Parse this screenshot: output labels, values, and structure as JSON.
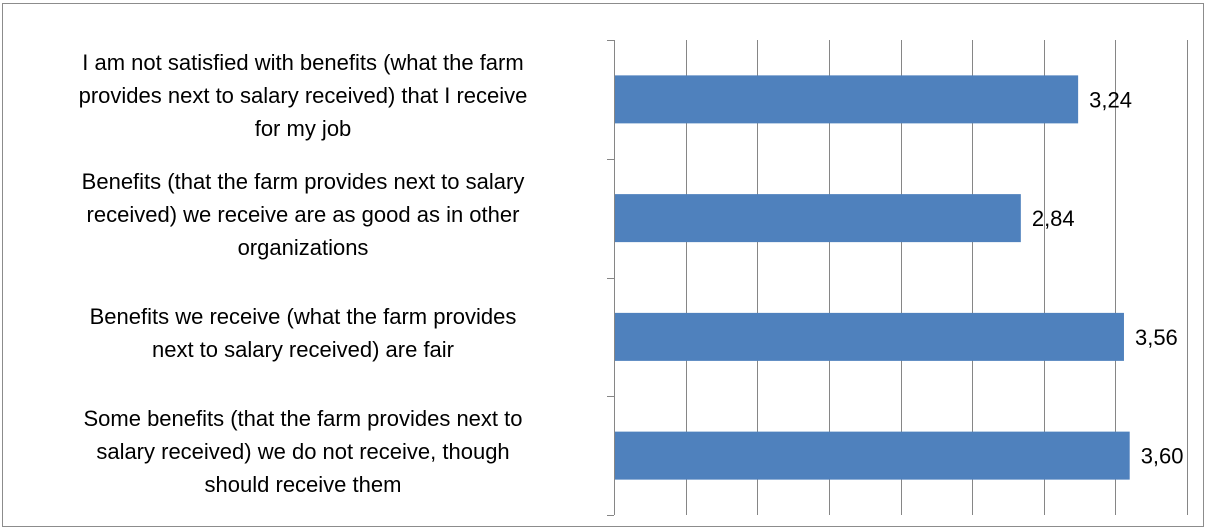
{
  "chart_data": {
    "type": "bar",
    "orientation": "horizontal",
    "categories": [
      "I am not satisfied with benefits (what the farm provides next to salary received) that I receive for my job",
      "Benefits (that the farm provides  next to salary received) we receive are as good as in other organizations",
      "Benefits we receive (what the farm provides next to salary received) are fair",
      "Some benefits (that the farm provides  next to salary received) we do not receive, though should receive them"
    ],
    "category_lines": [
      [
        "I am not satisfied with benefits (what the farm",
        "provides next to salary received) that I receive",
        "for my job"
      ],
      [
        "Benefits (that the farm provides  next to salary",
        "received) we receive are as good as in other",
        "organizations"
      ],
      [
        "Benefits we receive (what the farm provides",
        "next to salary received) are fair"
      ],
      [
        "Some benefits (that the farm provides  next to",
        "salary received) we do not receive, though",
        "should receive them"
      ]
    ],
    "values": [
      3.24,
      2.84,
      3.56,
      3.6
    ],
    "value_labels": [
      "3,24",
      "2,84",
      "3,56",
      "3,60"
    ],
    "xlim": [
      0,
      4
    ],
    "grid": true,
    "bar_color": "#4f81bd",
    "gridline_color": "#868686",
    "legend": "none"
  }
}
